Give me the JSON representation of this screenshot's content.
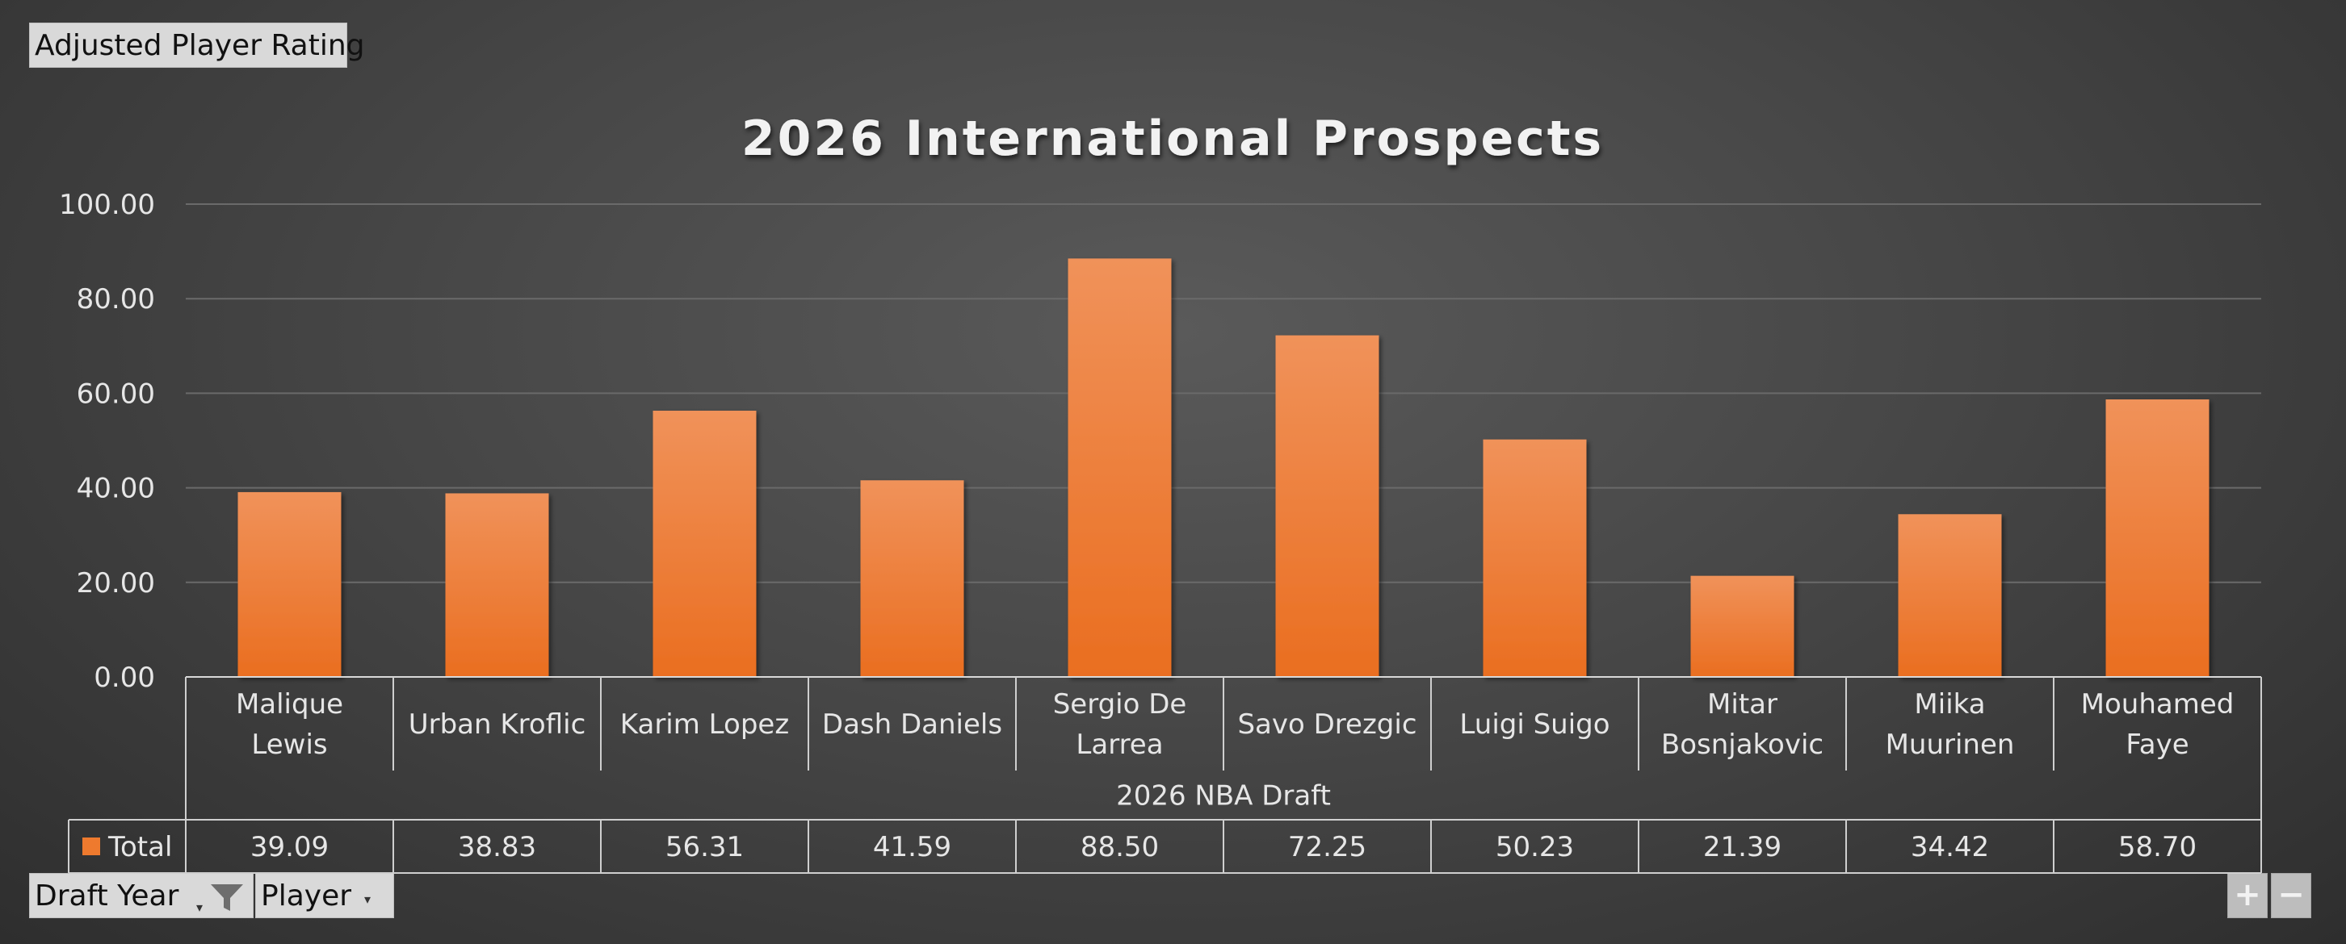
{
  "pivot": {
    "measure_label": "Adjusted Player Rating",
    "filter_fields": [
      "Draft Year",
      "Player"
    ],
    "zoom_in": "+",
    "zoom_out": "−"
  },
  "colors": {
    "bar_top": "#f0925a",
    "bar_bottom": "#ea6e20",
    "legend_swatch": "#ee7a2e"
  },
  "chart_data": {
    "type": "bar",
    "title": "2026 International Prospects",
    "group_label": "2026 NBA Draft",
    "categories": [
      [
        "Malique",
        "Lewis"
      ],
      [
        "Urban Kroflic"
      ],
      [
        "Karim Lopez"
      ],
      [
        "Dash Daniels"
      ],
      [
        "Sergio De",
        "Larrea"
      ],
      [
        "Savo Drezgic"
      ],
      [
        "Luigi Suigo"
      ],
      [
        "Mitar",
        "Bosnjakovic"
      ],
      [
        "Miika",
        "Muurinen"
      ],
      [
        "Mouhamed",
        "Faye"
      ]
    ],
    "series": [
      {
        "name": "Total",
        "values": [
          39.09,
          38.83,
          56.31,
          41.59,
          88.5,
          72.25,
          50.23,
          21.39,
          34.42,
          58.7
        ],
        "value_labels": [
          "39.09",
          "38.83",
          "56.31",
          "41.59",
          "88.50",
          "72.25",
          "50.23",
          "21.39",
          "34.42",
          "58.70"
        ]
      }
    ],
    "ylim": [
      0,
      100
    ],
    "yticks": [
      0,
      20,
      40,
      60,
      80,
      100
    ],
    "ytick_labels": [
      "0.00",
      "20.00",
      "40.00",
      "60.00",
      "80.00",
      "100.00"
    ],
    "grid": true,
    "data_table": true,
    "legend": "in data table"
  }
}
